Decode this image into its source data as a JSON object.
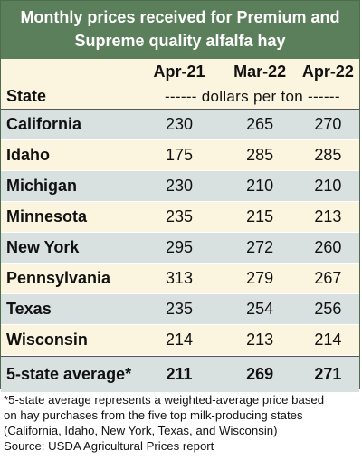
{
  "title": {
    "line1": "Monthly prices received for Premium and",
    "line2": "Supreme quality alfalfa hay"
  },
  "columns": [
    "Apr-21",
    "Mar-22",
    "Apr-22"
  ],
  "state_label": "State",
  "units": "------ dollars per ton ------",
  "rows": [
    {
      "state": "California",
      "values": [
        230,
        265,
        270
      ]
    },
    {
      "state": "Idaho",
      "values": [
        175,
        285,
        285
      ]
    },
    {
      "state": "Michigan",
      "values": [
        230,
        210,
        210
      ]
    },
    {
      "state": "Minnesota",
      "values": [
        235,
        215,
        213
      ]
    },
    {
      "state": "New York",
      "values": [
        295,
        272,
        260
      ]
    },
    {
      "state": "Pennsylvania",
      "values": [
        313,
        279,
        267
      ]
    },
    {
      "state": "Texas",
      "values": [
        235,
        254,
        256
      ]
    },
    {
      "state": "Wisconsin",
      "values": [
        214,
        213,
        214
      ]
    }
  ],
  "average": {
    "label": "5-state average*",
    "values": [
      211,
      269,
      271
    ]
  },
  "footnote": [
    "*5-state average represents  a weighted-average price based",
    "on hay purchases from the five top milk-producing states",
    "(California, Idaho, New York, Texas, and Wisconsin)"
  ],
  "source": "Source: USDA Agricultural Prices report",
  "colors": {
    "title_bg": "#5b7e5b",
    "stripe_gray": "#d9e0e0",
    "stripe_cream": "#fbf5df"
  },
  "chart_data": {
    "type": "table",
    "title": "Monthly prices received for Premium and Supreme quality alfalfa hay",
    "columns": [
      "State",
      "Apr-21",
      "Mar-22",
      "Apr-22"
    ],
    "unit": "dollars per ton",
    "rows": [
      [
        "California",
        230,
        265,
        270
      ],
      [
        "Idaho",
        175,
        285,
        285
      ],
      [
        "Michigan",
        230,
        210,
        210
      ],
      [
        "Minnesota",
        235,
        215,
        213
      ],
      [
        "New York",
        295,
        272,
        260
      ],
      [
        "Pennsylvania",
        313,
        279,
        267
      ],
      [
        "Texas",
        235,
        254,
        256
      ],
      [
        "Wisconsin",
        214,
        213,
        214
      ],
      [
        "5-state average*",
        211,
        269,
        271
      ]
    ]
  }
}
